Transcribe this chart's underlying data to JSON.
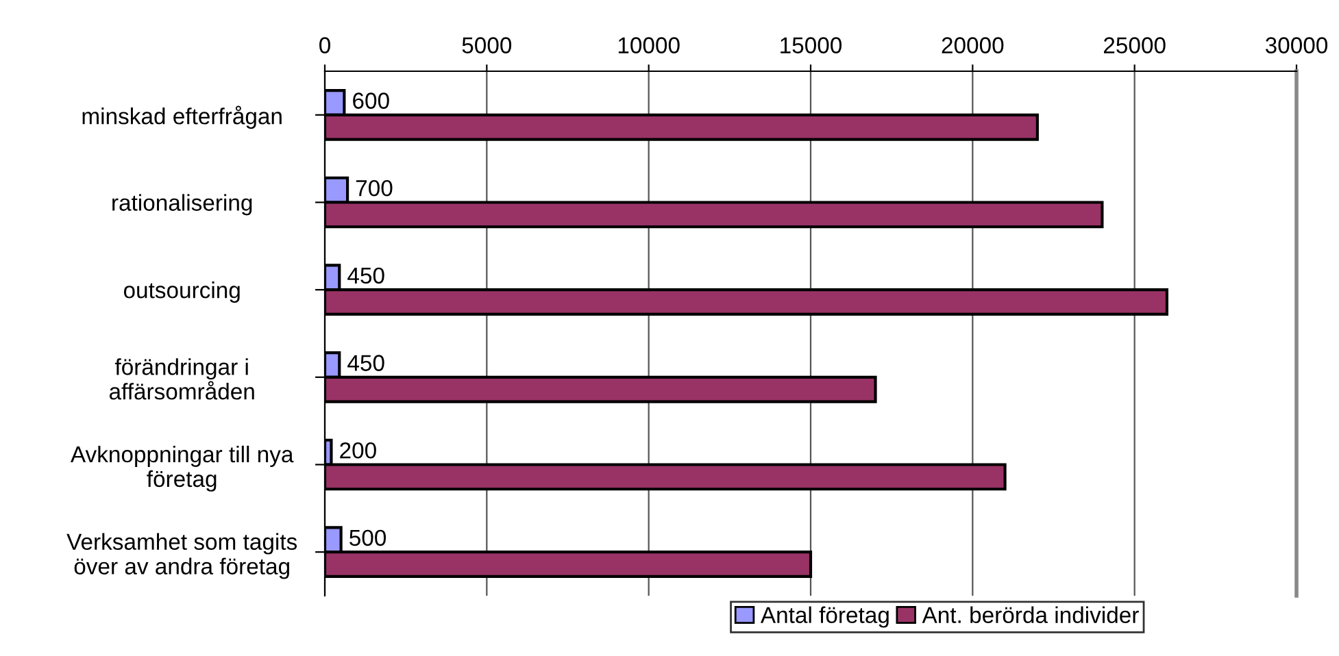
{
  "chart_data": {
    "type": "bar",
    "orientation": "horizontal",
    "categories": [
      "minskad efterfrågan",
      "rationalisering",
      "outsourcing",
      "förändringar i\naffärsområden",
      "Avknoppningar till nya\nföretag",
      "Verksamhet som tagits\növer av andra företag"
    ],
    "series": [
      {
        "name": "Antal företag",
        "color": "#9999ff",
        "values": [
          600,
          700,
          450,
          450,
          200,
          500
        ],
        "value_labels": [
          "600",
          "700",
          "450",
          "450",
          "200",
          "500"
        ]
      },
      {
        "name": "Ant. berörda individer",
        "color": "#993366",
        "values": [
          22000,
          24000,
          26000,
          17000,
          21000,
          15000
        ]
      }
    ],
    "xlim": [
      0,
      30000
    ],
    "xticks": [
      0,
      5000,
      10000,
      15000,
      20000,
      25000,
      30000
    ],
    "grid": "x",
    "legend": "bottom"
  }
}
